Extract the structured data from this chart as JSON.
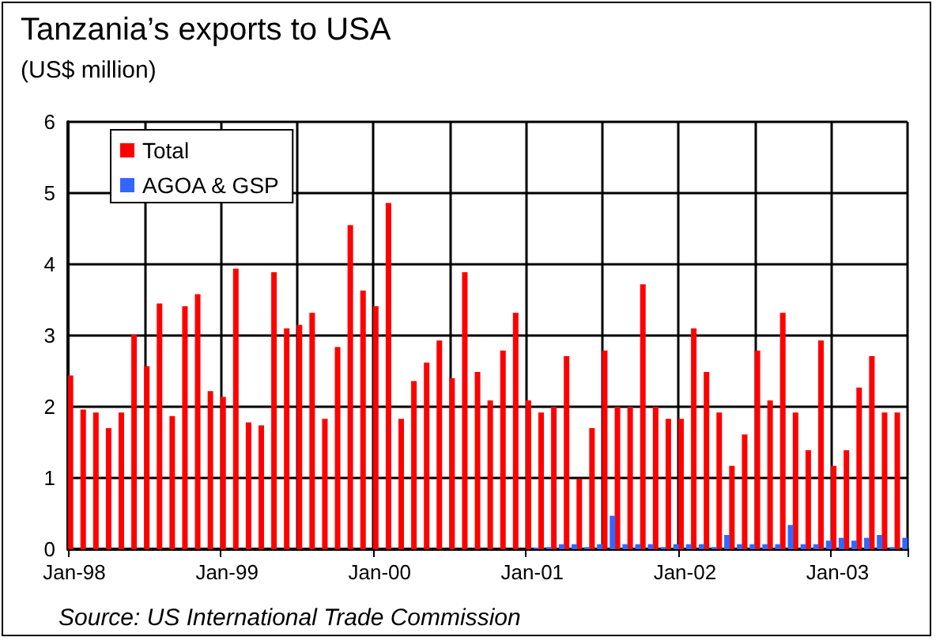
{
  "chart_data": {
    "type": "bar",
    "title": "Tanzania’s exports to USA",
    "subtitle": "(US$ million)",
    "categories": [
      "Jan-98",
      null,
      null,
      null,
      null,
      null,
      null,
      null,
      null,
      null,
      null,
      null,
      "Jan-99",
      null,
      null,
      null,
      null,
      null,
      null,
      null,
      null,
      null,
      null,
      null,
      "Jan-00",
      null,
      null,
      null,
      null,
      null,
      null,
      null,
      null,
      null,
      null,
      null,
      "Jan-01",
      null,
      null,
      null,
      null,
      null,
      null,
      null,
      null,
      null,
      null,
      null,
      "Jan-02",
      null,
      null,
      null,
      null,
      null,
      null,
      null,
      null,
      null,
      null,
      null,
      "Jan-03",
      null,
      null,
      null,
      null,
      null
    ],
    "series": [
      {
        "name": "Total",
        "color": "#ff0000",
        "values": [
          2.44,
          1.96,
          1.92,
          1.7,
          1.92,
          3.01,
          2.57,
          3.45,
          1.87,
          3.41,
          3.58,
          2.22,
          2.14,
          3.94,
          1.78,
          1.74,
          3.89,
          3.1,
          3.15,
          3.32,
          1.83,
          2.84,
          4.55,
          3.63,
          3.41,
          4.86,
          1.83,
          2.36,
          2.62,
          2.93,
          2.4,
          3.89,
          2.49,
          2.09,
          2.79,
          3.32,
          2.09,
          1.92,
          2.0,
          2.71,
          0.99,
          1.7,
          2.79,
          2.0,
          2.0,
          3.72,
          2.0,
          1.83,
          1.83,
          3.1,
          2.49,
          1.92,
          1.17,
          1.61,
          2.79,
          2.09,
          3.32,
          1.92,
          1.39,
          2.93,
          1.17,
          1.39,
          2.27,
          2.71,
          1.92,
          1.92
        ]
      },
      {
        "name": "AGOA & GSP",
        "color": "#3366ff",
        "values": [
          null,
          null,
          null,
          null,
          null,
          null,
          null,
          null,
          null,
          null,
          null,
          null,
          null,
          null,
          null,
          null,
          null,
          null,
          null,
          null,
          null,
          null,
          null,
          null,
          null,
          null,
          null,
          null,
          null,
          null,
          null,
          null,
          null,
          null,
          null,
          null,
          0.02,
          0.03,
          0.07,
          0.07,
          0.03,
          0.07,
          0.47,
          0.07,
          0.07,
          0.07,
          0.03,
          0.07,
          0.07,
          0.07,
          0.03,
          0.2,
          0.07,
          0.07,
          0.07,
          0.07,
          0.34,
          0.07,
          0.07,
          0.12,
          0.16,
          0.12,
          0.16,
          0.2,
          0.03,
          0.16
        ]
      }
    ],
    "ylim": [
      0,
      6
    ],
    "yticks": [
      0,
      1,
      2,
      3,
      4,
      5,
      6
    ],
    "grid": true,
    "legend": "top left",
    "annotations": [
      "Source: US International Trade Commission"
    ]
  }
}
